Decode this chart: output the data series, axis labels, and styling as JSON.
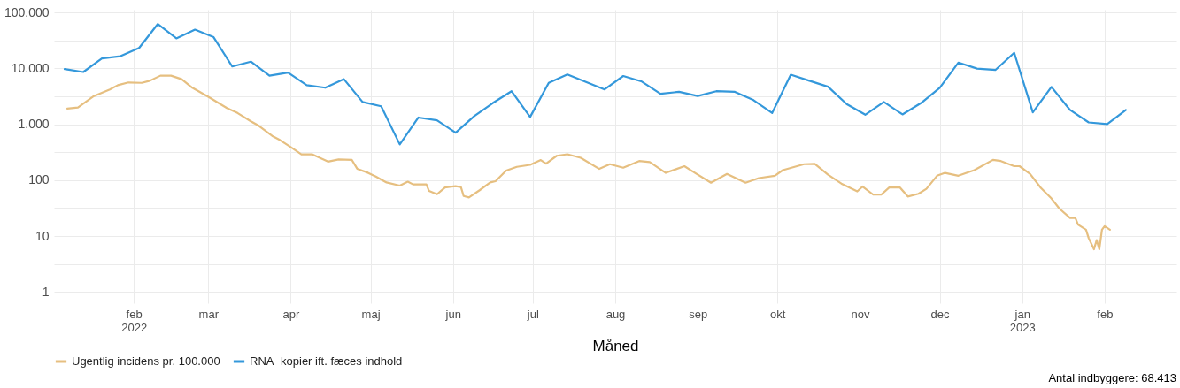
{
  "chart_data": {
    "type": "line",
    "xlabel": "Måned",
    "log": true,
    "grid": true,
    "legend": "bottom",
    "annotations": [
      "Antal indbyggere: 68.413"
    ],
    "xlim": [
      "2022-01-02",
      "2023-02-28"
    ],
    "xticks": [
      {
        "value": "2022-02-01",
        "label": "feb\n2022"
      },
      {
        "value": "2022-03-01",
        "label": "mar"
      },
      {
        "value": "2022-04-01",
        "label": "apr"
      },
      {
        "value": "2022-05-01",
        "label": "maj"
      },
      {
        "value": "2022-06-01",
        "label": "jun"
      },
      {
        "value": "2022-07-01",
        "label": "jul"
      },
      {
        "value": "2022-08-01",
        "label": "aug"
      },
      {
        "value": "2022-09-01",
        "label": "sep"
      },
      {
        "value": "2022-10-01",
        "label": "okt"
      },
      {
        "value": "2022-11-01",
        "label": "nov"
      },
      {
        "value": "2022-12-01",
        "label": "dec"
      },
      {
        "value": "2023-01-01",
        "label": "jan\n2023"
      },
      {
        "value": "2023-02-01",
        "label": "feb"
      }
    ],
    "ylim": [
      0.63,
      112000
    ],
    "yticks": [
      1,
      {
        "value": 3.16,
        "label": null
      },
      10,
      {
        "value": 31.6,
        "label": null
      },
      100,
      {
        "value": 316,
        "label": null
      },
      {
        "value": 1000,
        "label": "1.000"
      },
      {
        "value": 3162,
        "label": null
      },
      {
        "value": 10000,
        "label": "10.000"
      },
      {
        "value": 31623,
        "label": null
      },
      {
        "value": 100000,
        "label": "100.000"
      }
    ],
    "series": [
      {
        "name": "Ugentlig incidens pr. 100.000",
        "color": "#e6bf80",
        "x": [
          "2022-01-07",
          "2022-01-11",
          "2022-01-17",
          "2022-01-23",
          "2022-01-26",
          "2022-01-30",
          "2022-02-04",
          "2022-02-07",
          "2022-02-11",
          "2022-02-15",
          "2022-02-19",
          "2022-02-23",
          "2022-03-01",
          "2022-03-08",
          "2022-03-12",
          "2022-03-17",
          "2022-03-20",
          "2022-03-25",
          "2022-03-28",
          "2022-04-01",
          "2022-04-05",
          "2022-04-09",
          "2022-04-15",
          "2022-04-19",
          "2022-04-24",
          "2022-04-26",
          "2022-04-30",
          "2022-05-03",
          "2022-05-07",
          "2022-05-12",
          "2022-05-15",
          "2022-05-17",
          "2022-05-22",
          "2022-05-23",
          "2022-05-26",
          "2022-05-29",
          "2022-06-02",
          "2022-06-04",
          "2022-06-05",
          "2022-06-07",
          "2022-06-11",
          "2022-06-15",
          "2022-06-17",
          "2022-06-21",
          "2022-06-25",
          "2022-06-30",
          "2022-07-04",
          "2022-07-06",
          "2022-07-10",
          "2022-07-14",
          "2022-07-19",
          "2022-07-26",
          "2022-07-30",
          "2022-08-04",
          "2022-08-10",
          "2022-08-14",
          "2022-08-20",
          "2022-08-27",
          "2022-08-31",
          "2022-09-06",
          "2022-09-12",
          "2022-09-19",
          "2022-09-24",
          "2022-09-30",
          "2022-10-03",
          "2022-10-11",
          "2022-10-15",
          "2022-10-20",
          "2022-10-25",
          "2022-10-31",
          "2022-11-02",
          "2022-11-06",
          "2022-11-09",
          "2022-11-12",
          "2022-11-16",
          "2022-11-19",
          "2022-11-23",
          "2022-11-26",
          "2022-11-30",
          "2022-12-03",
          "2022-12-08",
          "2022-12-14",
          "2022-12-21",
          "2022-12-24",
          "2022-12-29",
          "2022-12-31",
          "2023-01-04",
          "2023-01-08",
          "2023-01-12",
          "2023-01-15",
          "2023-01-19",
          "2023-01-21",
          "2023-01-22",
          "2023-01-25",
          "2023-01-26",
          "2023-01-28",
          "2023-01-29",
          "2023-01-30",
          "2023-01-31",
          "2023-02-01",
          "2023-02-03"
        ],
        "values": [
          1900,
          2000,
          3200,
          4200,
          5000,
          5600,
          5500,
          6000,
          7400,
          7400,
          6400,
          4500,
          3100,
          1950,
          1590,
          1130,
          940,
          620,
          520,
          390,
          290,
          290,
          215,
          235,
          230,
          160,
          136,
          116,
          91,
          80,
          94,
          84,
          84,
          64,
          56,
          74,
          78,
          75,
          52,
          49,
          66,
          91,
          96,
          148,
          173,
          188,
          229,
          197,
          273,
          291,
          251,
          159,
          193,
          167,
          220,
          210,
          135,
          178,
          135,
          90,
          129,
          90,
          109,
          120,
          151,
          193,
          196,
          125,
          87,
          63,
          77,
          55,
          55,
          74,
          74,
          51,
          57,
          70,
          120,
          135,
          120,
          151,
          231,
          220,
          178,
          178,
          129,
          73,
          47,
          31,
          21,
          21,
          16,
          13,
          9.2,
          5.8,
          8.5,
          5.8,
          13,
          15,
          13
        ]
      },
      {
        "name": "RNA−kopier ift. fæces indhold",
        "color": "#3498db",
        "x": [
          "2022-01-06",
          "2022-01-13",
          "2022-01-20",
          "2022-01-27",
          "2022-02-03",
          "2022-02-10",
          "2022-02-17",
          "2022-02-24",
          "2022-03-03",
          "2022-03-10",
          "2022-03-17",
          "2022-03-24",
          "2022-03-31",
          "2022-04-07",
          "2022-04-14",
          "2022-04-21",
          "2022-04-28",
          "2022-05-05",
          "2022-05-12",
          "2022-05-19",
          "2022-05-26",
          "2022-06-02",
          "2022-06-09",
          "2022-06-16",
          "2022-06-23",
          "2022-06-30",
          "2022-07-07",
          "2022-07-14",
          "2022-07-21",
          "2022-07-28",
          "2022-08-04",
          "2022-08-11",
          "2022-08-18",
          "2022-08-25",
          "2022-09-01",
          "2022-09-08",
          "2022-09-15",
          "2022-09-22",
          "2022-09-29",
          "2022-10-06",
          "2022-10-13",
          "2022-10-20",
          "2022-10-27",
          "2022-11-03",
          "2022-11-10",
          "2022-11-17",
          "2022-11-24",
          "2022-12-01",
          "2022-12-08",
          "2022-12-15",
          "2022-12-22",
          "2022-12-29",
          "2023-01-05",
          "2023-01-12",
          "2023-01-19",
          "2023-01-26",
          "2023-02-02",
          "2023-02-09"
        ],
        "values": [
          9700,
          8600,
          15000,
          16500,
          23200,
          62000,
          34400,
          49300,
          36100,
          10800,
          13200,
          7400,
          8400,
          5000,
          4500,
          6400,
          2500,
          2100,
          436,
          1320,
          1180,
          705,
          1400,
          2400,
          3900,
          1350,
          5500,
          7800,
          5700,
          4200,
          7300,
          5800,
          3500,
          3800,
          3200,
          3900,
          3800,
          2700,
          1590,
          7700,
          6000,
          4700,
          2300,
          1480,
          2500,
          1500,
          2400,
          4500,
          12700,
          9900,
          9400,
          19000,
          1630,
          4650,
          1800,
          1080,
          1010,
          1800
        ]
      }
    ]
  }
}
